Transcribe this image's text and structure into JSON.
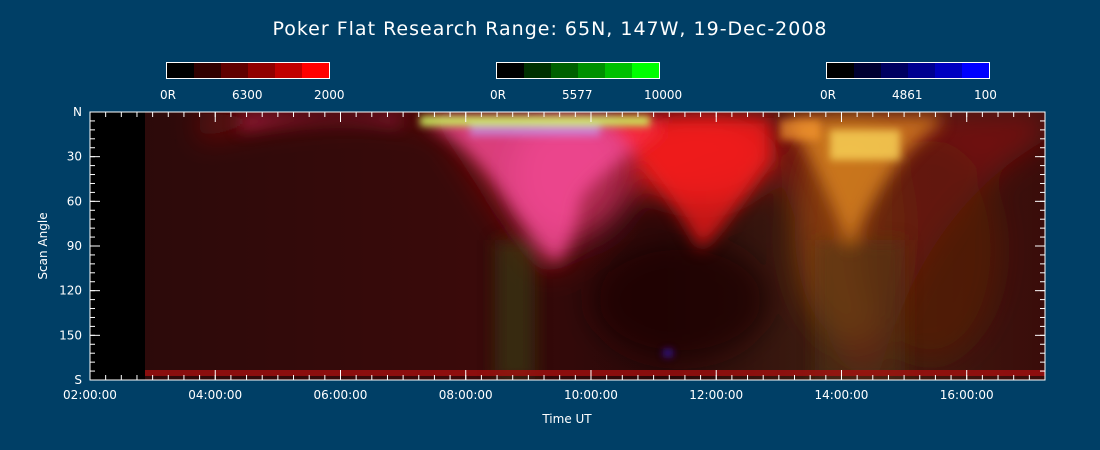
{
  "title": "Poker Flat Research Range: 65N, 147W, 19-Dec-2008",
  "colorbars": [
    {
      "name": "6300",
      "min_label": "0R",
      "mid_label": "6300",
      "max_label": "2000",
      "colors": [
        "#000000",
        "#300000",
        "#600000",
        "#900000",
        "#c00000",
        "#ff0000"
      ]
    },
    {
      "name": "5577",
      "min_label": "0R",
      "mid_label": "5577",
      "max_label": "10000",
      "colors": [
        "#000000",
        "#003000",
        "#006000",
        "#009000",
        "#00c000",
        "#00ff00"
      ]
    },
    {
      "name": "4861",
      "min_label": "0R",
      "mid_label": "4861",
      "max_label": "100",
      "colors": [
        "#000000",
        "#000030",
        "#000060",
        "#000090",
        "#0000c0",
        "#0000ff"
      ]
    }
  ],
  "chart_data": {
    "type": "heatmap",
    "title": "Poker Flat Research Range: 65N, 147W, 19-Dec-2008",
    "xlabel": "Time UT",
    "ylabel": "Scan Angle",
    "x_ticks": [
      "02:00:00",
      "04:00:00",
      "06:00:00",
      "08:00:00",
      "10:00:00",
      "12:00:00",
      "14:00:00",
      "16:00:00"
    ],
    "y_ticks": [
      "N",
      "30",
      "60",
      "90",
      "120",
      "150",
      "S"
    ],
    "x_range": [
      "02:00:00",
      "17:15:00"
    ],
    "y_range": [
      0,
      180
    ],
    "data_start": "02:45:00",
    "channels": [
      "6300 (red)",
      "5577 (green)",
      "4861 (blue)"
    ]
  }
}
